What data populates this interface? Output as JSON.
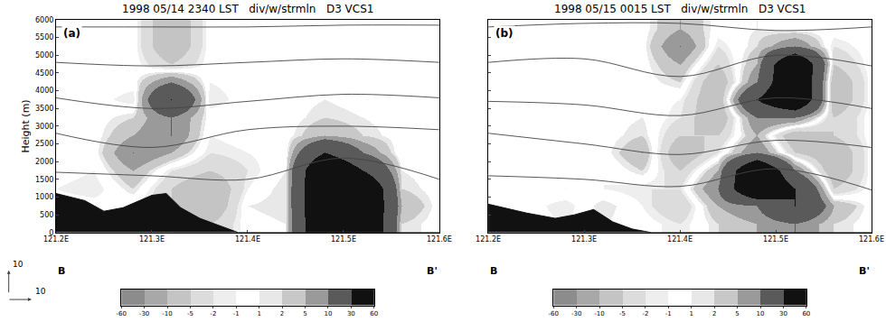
{
  "chart_data": [
    {
      "type": "heatmap",
      "title": "1998 05/14 2340 LST   div/w/strmln   D3 VCS1",
      "panel_label": "(a)",
      "ylabel": "Height (m)",
      "end_labels": [
        "B",
        "B'"
      ],
      "vector_scale": [
        "10",
        "10"
      ],
      "tick_labels": true,
      "xlim": [
        121.2,
        121.6
      ],
      "ylim": [
        0,
        6000
      ],
      "xticks": [
        {
          "value": 121.2,
          "label": "121.2E"
        },
        {
          "value": 121.3,
          "label": "121.3E"
        },
        {
          "value": 121.4,
          "label": "121.4E"
        },
        {
          "value": 121.5,
          "label": "121.5E"
        },
        {
          "value": 121.6,
          "label": "121.6E"
        }
      ],
      "yticks": [
        0,
        500,
        1000,
        1500,
        2000,
        2500,
        3000,
        3500,
        4000,
        4500,
        5000,
        5500,
        6000
      ],
      "cells": {
        "x": [
          121.2,
          121.24,
          121.28,
          121.32,
          121.36,
          121.4,
          121.44,
          121.48,
          121.52,
          121.56,
          121.6
        ],
        "y": [
          250,
          750,
          1250,
          1750,
          2250,
          2750,
          3250,
          3750,
          4250,
          4750,
          5250,
          5750
        ],
        "z": [
          [
            0,
            0,
            0,
            -2,
            -5,
            0,
            1,
            60,
            60,
            2,
            0
          ],
          [
            0,
            0,
            -1,
            -5,
            -10,
            1,
            2,
            60,
            60,
            5,
            0
          ],
          [
            -1,
            -2,
            2,
            -5,
            -10,
            -1,
            2,
            60,
            60,
            2,
            0
          ],
          [
            0,
            -1,
            5,
            -2,
            -5,
            -2,
            1,
            60,
            30,
            1,
            0
          ],
          [
            0,
            0,
            10,
            5,
            -2,
            -1,
            0,
            30,
            10,
            -1,
            0
          ],
          [
            0,
            0,
            5,
            10,
            -1,
            0,
            0,
            5,
            2,
            0,
            0
          ],
          [
            0,
            0,
            2,
            10,
            0,
            0,
            0,
            2,
            1,
            0,
            0
          ],
          [
            0,
            0,
            -2,
            30,
            -2,
            0,
            0,
            1,
            0,
            0,
            0
          ],
          [
            0,
            0,
            0,
            10,
            -1,
            0,
            0,
            0,
            0,
            0,
            0
          ],
          [
            0,
            0,
            0,
            -5,
            0,
            0,
            0,
            0,
            0,
            0,
            0
          ],
          [
            0,
            0,
            0,
            -10,
            0,
            0,
            0,
            0,
            0,
            0,
            0
          ],
          [
            0,
            0,
            0,
            -10,
            0,
            0,
            0,
            0,
            0,
            0,
            0
          ]
        ]
      },
      "colorbar": {
        "range": [
          -60,
          60
        ],
        "ticks": [
          -60,
          -30,
          -10,
          -5,
          -2,
          -1,
          1,
          2,
          5,
          10,
          30,
          60
        ]
      },
      "terrain": {
        "x": [
          121.2,
          121.23,
          121.25,
          121.27,
          121.3,
          121.315,
          121.33,
          121.35,
          121.37,
          121.39,
          121.6
        ],
        "values": [
          1100,
          900,
          600,
          700,
          1050,
          1100,
          700,
          400,
          200,
          0,
          0
        ]
      },
      "streamlines": {
        "x": [
          121.2,
          121.3,
          121.4,
          121.5,
          121.6
        ],
        "series": [
          [
            5800,
            5800,
            5800,
            5850,
            5850
          ],
          [
            4800,
            4700,
            4800,
            4900,
            4800
          ],
          [
            3800,
            3500,
            3700,
            3900,
            3800
          ],
          [
            2800,
            2400,
            2900,
            3000,
            2900
          ],
          [
            1700,
            1600,
            1500,
            2100,
            1500
          ]
        ]
      }
    },
    {
      "type": "heatmap",
      "title": "1998 05/15 0015 LST   div/w/strmln   D3 VCS1",
      "panel_label": "(b)",
      "end_labels": [
        "B",
        "B'"
      ],
      "tick_labels": "x",
      "xlim": [
        121.2,
        121.6
      ],
      "ylim": [
        0,
        6000
      ],
      "xticks": [
        {
          "value": 121.2,
          "label": "121.2E"
        },
        {
          "value": 121.3,
          "label": "121.3E"
        },
        {
          "value": 121.4,
          "label": "121.4E"
        },
        {
          "value": 121.5,
          "label": "121.5E"
        },
        {
          "value": 121.6,
          "label": "121.6E"
        }
      ],
      "yticks": [
        0,
        500,
        1000,
        1500,
        2000,
        2500,
        3000,
        3500,
        4000,
        4500,
        5000,
        5500,
        6000
      ],
      "cells": {
        "x": [
          121.2,
          121.24,
          121.28,
          121.32,
          121.36,
          121.4,
          121.44,
          121.48,
          121.52,
          121.56,
          121.6
        ],
        "y": [
          250,
          750,
          1250,
          1750,
          2250,
          2750,
          3250,
          3750,
          4250,
          4750,
          5250,
          5750
        ],
        "z": [
          [
            0,
            0,
            -1,
            1,
            0,
            -2,
            2,
            5,
            10,
            2,
            0
          ],
          [
            0,
            0,
            -2,
            2,
            -1,
            -5,
            5,
            10,
            30,
            5,
            0
          ],
          [
            0,
            0,
            1,
            -1,
            -2,
            -2,
            10,
            60,
            30,
            -5,
            0
          ],
          [
            0,
            0,
            0,
            -1,
            2,
            -5,
            5,
            60,
            10,
            -10,
            0
          ],
          [
            0,
            0,
            0,
            0,
            5,
            -10,
            -2,
            10,
            -5,
            -10,
            0
          ],
          [
            0,
            0,
            0,
            0,
            2,
            -5,
            -5,
            5,
            -10,
            -5,
            0
          ],
          [
            0,
            0,
            0,
            0,
            1,
            -2,
            -10,
            10,
            10,
            -5,
            0
          ],
          [
            0,
            0,
            0,
            0,
            0,
            -1,
            -10,
            30,
            60,
            -10,
            0
          ],
          [
            0,
            0,
            0,
            0,
            0,
            2,
            -10,
            10,
            60,
            -10,
            0
          ],
          [
            0,
            0,
            0,
            0,
            0,
            5,
            -5,
            5,
            60,
            -5,
            0
          ],
          [
            0,
            0,
            0,
            0,
            0,
            10,
            -2,
            2,
            10,
            -2,
            0
          ],
          [
            0,
            0,
            0,
            0,
            0,
            5,
            0,
            1,
            0,
            0,
            0
          ]
        ]
      },
      "colorbar": {
        "range": [
          -60,
          60
        ],
        "ticks": [
          -60,
          -30,
          -10,
          -5,
          -2,
          -1,
          1,
          2,
          5,
          10,
          30,
          60
        ]
      },
      "terrain": {
        "x": [
          121.2,
          121.24,
          121.27,
          121.29,
          121.31,
          121.33,
          121.35,
          121.37,
          121.6
        ],
        "values": [
          800,
          550,
          400,
          500,
          650,
          300,
          100,
          0,
          0
        ]
      },
      "streamlines": {
        "x": [
          121.2,
          121.3,
          121.4,
          121.5,
          121.6
        ],
        "series": [
          [
            5800,
            5900,
            5900,
            5700,
            5800
          ],
          [
            4800,
            4900,
            4400,
            5000,
            4700
          ],
          [
            3700,
            3600,
            3300,
            3800,
            3500
          ],
          [
            2800,
            2500,
            2200,
            2600,
            2400
          ],
          [
            1600,
            1500,
            1300,
            1800,
            1200
          ]
        ]
      }
    }
  ]
}
